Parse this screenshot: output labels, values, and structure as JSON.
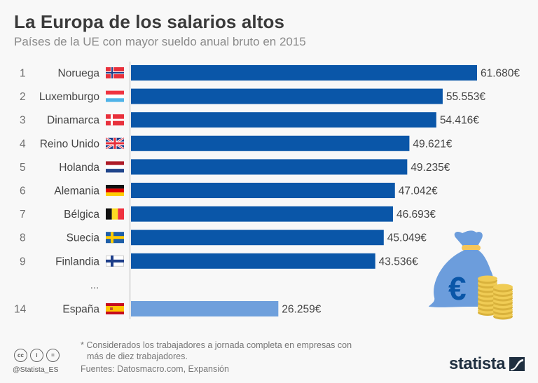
{
  "header": {
    "title": "La Europa de los salarios altos",
    "subtitle": "Países de la UE con mayor sueldo anual bruto en 2015"
  },
  "chart_data": {
    "type": "bar",
    "orientation": "horizontal",
    "title": "La Europa de los salarios altos",
    "subtitle": "Países de la UE con mayor sueldo anual bruto en 2015",
    "xlabel": "",
    "ylabel": "",
    "unit": "€",
    "grid": false,
    "xlim": [
      0,
      61680
    ],
    "colors": {
      "primary": "#0a56a8",
      "highlight": "#6fa0dc"
    },
    "rows": [
      {
        "rank": "1",
        "country": "Noruega",
        "flag": "NO",
        "value": 61680,
        "label": "61.680€",
        "highlight": false
      },
      {
        "rank": "2",
        "country": "Luxemburgo",
        "flag": "LU",
        "value": 55553,
        "label": "55.553€",
        "highlight": false
      },
      {
        "rank": "3",
        "country": "Dinamarca",
        "flag": "DK",
        "value": 54416,
        "label": "54.416€",
        "highlight": false
      },
      {
        "rank": "4",
        "country": "Reino Unido",
        "flag": "GB",
        "value": 49621,
        "label": "49.621€",
        "highlight": false
      },
      {
        "rank": "5",
        "country": "Holanda",
        "flag": "NL",
        "value": 49235,
        "label": "49.235€",
        "highlight": false
      },
      {
        "rank": "6",
        "country": "Alemania",
        "flag": "DE",
        "value": 47042,
        "label": "47.042€",
        "highlight": false
      },
      {
        "rank": "7",
        "country": "Bélgica",
        "flag": "BE",
        "value": 46693,
        "label": "46.693€",
        "highlight": false
      },
      {
        "rank": "8",
        "country": "Suecia",
        "flag": "SE",
        "value": 45049,
        "label": "45.049€",
        "highlight": false
      },
      {
        "rank": "9",
        "country": "Finlandia",
        "flag": "FI",
        "value": 43536,
        "label": "43.536€",
        "highlight": false
      },
      {
        "rank": "14",
        "country": "España",
        "flag": "ES",
        "value": 26259,
        "label": "26.259€",
        "highlight": true
      }
    ],
    "gap_label": "...",
    "illustration": "money-bag-euro-with-coins"
  },
  "footer": {
    "note_line1": "* Considerados los trabajadores a jornada completa en empresas con",
    "note_line2": "más de diez trabajadores.",
    "source": "Fuentes: Datosmacro.com, Expansión",
    "handle": "@Statista_ES",
    "license_icons": [
      "cc",
      "by",
      "nd"
    ],
    "license_glyphs": {
      "cc": "cc",
      "by": "i",
      "nd": "="
    },
    "brand": "statista"
  }
}
